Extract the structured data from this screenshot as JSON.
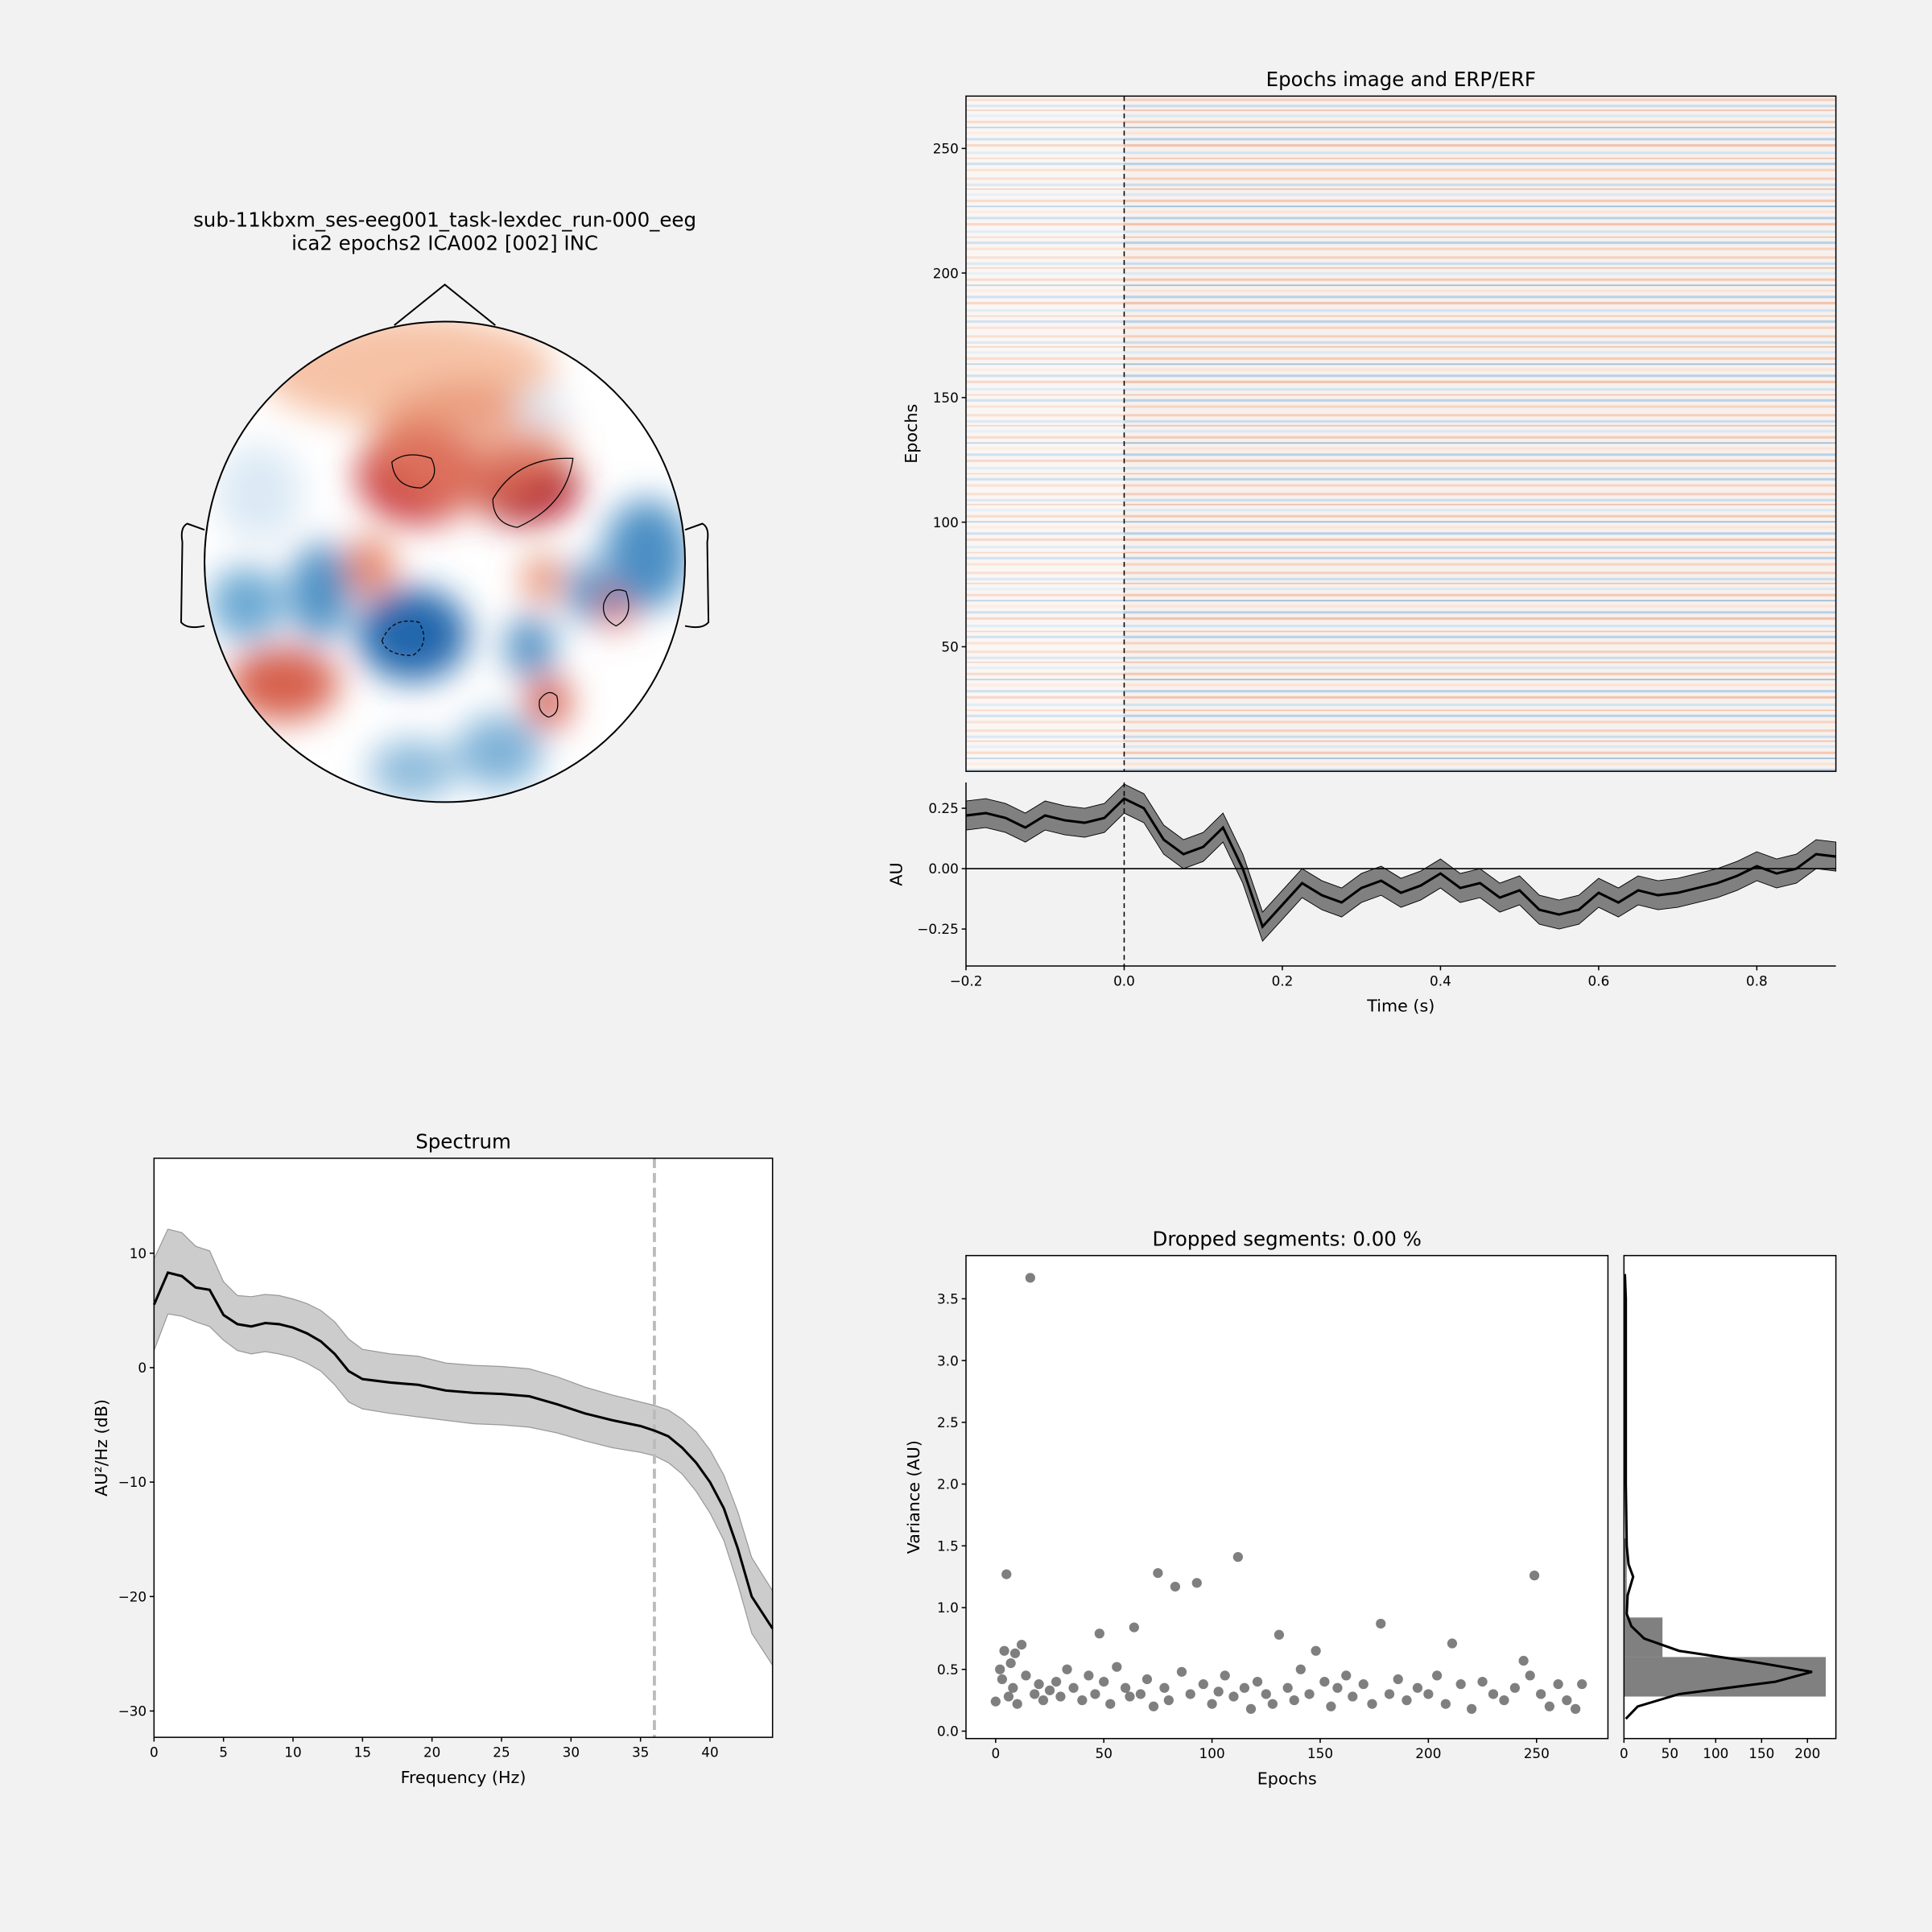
{
  "chart_data": [
    {
      "type": "topomap",
      "title": [
        "sub-11kbxm_ses-eeg001_task-lexdec_run-000_eeg",
        "ica2 epochs2 ICA002 [002] INC"
      ]
    },
    {
      "type": "image",
      "title": "Epochs image and ERP/ERF",
      "ylabel": "Epochs",
      "ylim": [
        0,
        271
      ],
      "yticks": [
        50,
        100,
        150,
        200,
        250
      ],
      "xlim": [
        -0.2,
        0.9
      ]
    },
    {
      "type": "line",
      "ylabel": "AU",
      "xlabel": "Time (s)",
      "xlim": [
        -0.2,
        0.9
      ],
      "ylim": [
        -0.403,
        0.357
      ],
      "xticks": [
        {
          "value": -0.2,
          "label": "−0.2"
        },
        {
          "value": 0,
          "label": "0.0"
        },
        0.2,
        0.4,
        0.6,
        0.8
      ],
      "yticks": [
        {
          "value": -0.25,
          "label": "−0.25"
        },
        {
          "value": 0,
          "label": "0.00"
        },
        0.25
      ],
      "x": [
        -0.2,
        -0.175,
        -0.15,
        -0.125,
        -0.1,
        -0.075,
        -0.05,
        -0.025,
        0,
        0.025,
        0.05,
        0.075,
        0.1,
        0.125,
        0.15,
        0.175,
        0.2,
        0.225,
        0.25,
        0.275,
        0.3,
        0.325,
        0.35,
        0.375,
        0.4,
        0.425,
        0.45,
        0.475,
        0.5,
        0.525,
        0.55,
        0.575,
        0.6,
        0.625,
        0.65,
        0.675,
        0.7,
        0.725,
        0.75,
        0.775,
        0.8,
        0.825,
        0.85,
        0.875,
        0.9
      ],
      "values": [
        0.22,
        0.23,
        0.21,
        0.17,
        0.22,
        0.2,
        0.19,
        0.21,
        0.29,
        0.25,
        0.12,
        0.06,
        0.09,
        0.17,
        0.0,
        -0.24,
        -0.15,
        -0.06,
        -0.11,
        -0.14,
        -0.08,
        -0.05,
        -0.1,
        -0.07,
        -0.02,
        -0.08,
        -0.06,
        -0.12,
        -0.09,
        -0.17,
        -0.19,
        -0.17,
        -0.1,
        -0.14,
        -0.09,
        -0.11,
        -0.1,
        -0.08,
        -0.06,
        -0.03,
        0.01,
        -0.02,
        0.0,
        0.06,
        0.05
      ],
      "upper": [
        0.28,
        0.29,
        0.27,
        0.23,
        0.28,
        0.26,
        0.25,
        0.27,
        0.35,
        0.31,
        0.18,
        0.12,
        0.15,
        0.23,
        0.06,
        -0.18,
        -0.09,
        0.0,
        -0.05,
        -0.08,
        -0.02,
        0.01,
        -0.04,
        -0.01,
        0.04,
        -0.02,
        0.0,
        -0.06,
        -0.03,
        -0.11,
        -0.13,
        -0.11,
        -0.04,
        -0.08,
        -0.03,
        -0.05,
        -0.04,
        -0.02,
        0.0,
        0.03,
        0.07,
        0.04,
        0.06,
        0.12,
        0.11
      ],
      "lower": [
        0.16,
        0.17,
        0.15,
        0.11,
        0.16,
        0.14,
        0.13,
        0.15,
        0.23,
        0.19,
        0.06,
        0.0,
        0.03,
        0.11,
        -0.06,
        -0.3,
        -0.21,
        -0.12,
        -0.17,
        -0.2,
        -0.14,
        -0.11,
        -0.16,
        -0.13,
        -0.08,
        -0.14,
        -0.12,
        -0.18,
        -0.15,
        -0.23,
        -0.25,
        -0.23,
        -0.16,
        -0.2,
        -0.15,
        -0.17,
        -0.16,
        -0.14,
        -0.12,
        -0.09,
        -0.05,
        -0.08,
        -0.06,
        0.0,
        -0.01
      ],
      "color": "#000000",
      "band_color": "#808080"
    },
    {
      "type": "line",
      "title": "Spectrum",
      "xlabel": "Frequency (Hz)",
      "ylabel": "AU²/Hz (dB)",
      "xlim": [
        0,
        44.5
      ],
      "ylim": [
        -32.3,
        18.3
      ],
      "xticks": [
        0,
        5,
        10,
        15,
        20,
        25,
        30,
        35,
        40
      ],
      "yticks": [
        {
          "value": -30,
          "label": "−30"
        },
        {
          "value": -20,
          "label": "−20"
        },
        {
          "value": -10,
          "label": "−10"
        },
        0,
        10
      ],
      "x": [
        0,
        1,
        2,
        3,
        4,
        5,
        6,
        7,
        8,
        9,
        10,
        11,
        12,
        13,
        14,
        15,
        17,
        19,
        21,
        23,
        25,
        27,
        29,
        31,
        33,
        35,
        36,
        37,
        38,
        39,
        40,
        41,
        42,
        43,
        44.5
      ],
      "values": [
        5.5,
        8.3,
        8.0,
        7.0,
        6.8,
        4.6,
        3.8,
        3.6,
        3.9,
        3.8,
        3.5,
        3.0,
        2.3,
        1.2,
        -0.3,
        -1.0,
        -1.3,
        -1.5,
        -2.0,
        -2.2,
        -2.3,
        -2.5,
        -3.2,
        -4.0,
        -4.6,
        -5.1,
        -5.5,
        -6.0,
        -7.0,
        -8.3,
        -10.0,
        -12.3,
        -15.8,
        -20.0,
        -22.8
      ],
      "upper": [
        9.5,
        12.1,
        11.8,
        10.6,
        10.2,
        7.5,
        6.3,
        6.2,
        6.4,
        6.3,
        6.0,
        5.6,
        5.0,
        4.0,
        2.5,
        1.6,
        1.2,
        1.0,
        0.4,
        0.2,
        0.1,
        -0.1,
        -0.8,
        -1.7,
        -2.4,
        -3.0,
        -3.3,
        -3.7,
        -4.5,
        -5.6,
        -7.2,
        -9.4,
        -12.6,
        -16.6,
        -19.5
      ],
      "lower": [
        1.5,
        4.7,
        4.5,
        4.0,
        3.6,
        2.4,
        1.5,
        1.2,
        1.4,
        1.2,
        0.9,
        0.4,
        -0.3,
        -1.5,
        -3.0,
        -3.6,
        -4.0,
        -4.3,
        -4.6,
        -4.9,
        -5.0,
        -5.2,
        -5.7,
        -6.4,
        -7.0,
        -7.4,
        -7.7,
        -8.3,
        -9.3,
        -10.8,
        -12.7,
        -15.1,
        -18.9,
        -23.2,
        -26.0
      ],
      "vline": 36,
      "color": "#000000",
      "band_color": "#cccccc"
    },
    {
      "type": "scatter",
      "title": "Dropped segments: 0.00 %",
      "xlabel": "Epochs",
      "ylabel": "Variance (AU)",
      "xlim": [
        -13.7,
        283
      ],
      "ylim": [
        -0.06,
        3.85
      ],
      "xticks": [
        0,
        50,
        100,
        150,
        200,
        250
      ],
      "yticks": [
        {
          "value": 0,
          "label": "0.0"
        },
        0.5,
        {
          "value": 1,
          "label": "1.0"
        },
        1.5,
        {
          "value": 2,
          "label": "2.0"
        },
        2.5,
        {
          "value": 3,
          "label": "3.0"
        },
        3.5
      ],
      "x": [
        0,
        2,
        3,
        4,
        5,
        6,
        7,
        8,
        9,
        10,
        12,
        14,
        16,
        18,
        20,
        22,
        25,
        28,
        30,
        33,
        36,
        40,
        43,
        46,
        48,
        50,
        53,
        56,
        60,
        62,
        64,
        67,
        70,
        73,
        75,
        78,
        80,
        83,
        86,
        90,
        93,
        96,
        100,
        103,
        106,
        110,
        112,
        115,
        118,
        121,
        125,
        128,
        131,
        135,
        138,
        141,
        145,
        148,
        152,
        155,
        158,
        162,
        165,
        170,
        174,
        178,
        182,
        186,
        190,
        195,
        200,
        204,
        208,
        211,
        215,
        220,
        225,
        230,
        235,
        240,
        244,
        247,
        249,
        252,
        256,
        260,
        264,
        268,
        271
      ],
      "values": [
        0.24,
        0.5,
        0.42,
        0.65,
        1.27,
        0.28,
        0.55,
        0.35,
        0.63,
        0.22,
        0.7,
        0.45,
        3.67,
        0.3,
        0.38,
        0.25,
        0.33,
        0.4,
        0.28,
        0.5,
        0.35,
        0.25,
        0.45,
        0.3,
        0.79,
        0.4,
        0.22,
        0.52,
        0.35,
        0.28,
        0.84,
        0.3,
        0.42,
        0.2,
        1.28,
        0.35,
        0.25,
        1.17,
        0.48,
        0.3,
        1.2,
        0.38,
        0.22,
        0.32,
        0.45,
        0.28,
        1.41,
        0.35,
        0.18,
        0.4,
        0.3,
        0.22,
        0.78,
        0.35,
        0.25,
        0.5,
        0.3,
        0.65,
        0.4,
        0.2,
        0.35,
        0.45,
        0.28,
        0.38,
        0.22,
        0.87,
        0.3,
        0.42,
        0.25,
        0.35,
        0.3,
        0.45,
        0.22,
        0.71,
        0.38,
        0.18,
        0.4,
        0.3,
        0.25,
        0.35,
        0.57,
        0.45,
        1.26,
        0.3,
        0.2,
        0.38,
        0.25,
        0.18,
        0.38
      ],
      "color": "#000000"
    },
    {
      "type": "histogram",
      "orientation": "horizontal",
      "xlim": [
        0,
        231
      ],
      "ylim": [
        -0.06,
        3.85
      ],
      "xticks": [
        0,
        50,
        100,
        150,
        200
      ],
      "bins": [
        0.28,
        0.6,
        0.92,
        1.24,
        1.56
      ],
      "counts": [
        220,
        42,
        3,
        3
      ],
      "color": "#808080",
      "kde_y": [
        0.1,
        0.2,
        0.3,
        0.4,
        0.48,
        0.55,
        0.65,
        0.75,
        0.85,
        0.95,
        1.1,
        1.25,
        1.35,
        1.5,
        2.0,
        2.5,
        3.0,
        3.5,
        3.7
      ],
      "kde_x": [
        2,
        15,
        60,
        165,
        205,
        150,
        60,
        22,
        8,
        3,
        4,
        10,
        5,
        3,
        2,
        2,
        2,
        2,
        1
      ]
    }
  ]
}
